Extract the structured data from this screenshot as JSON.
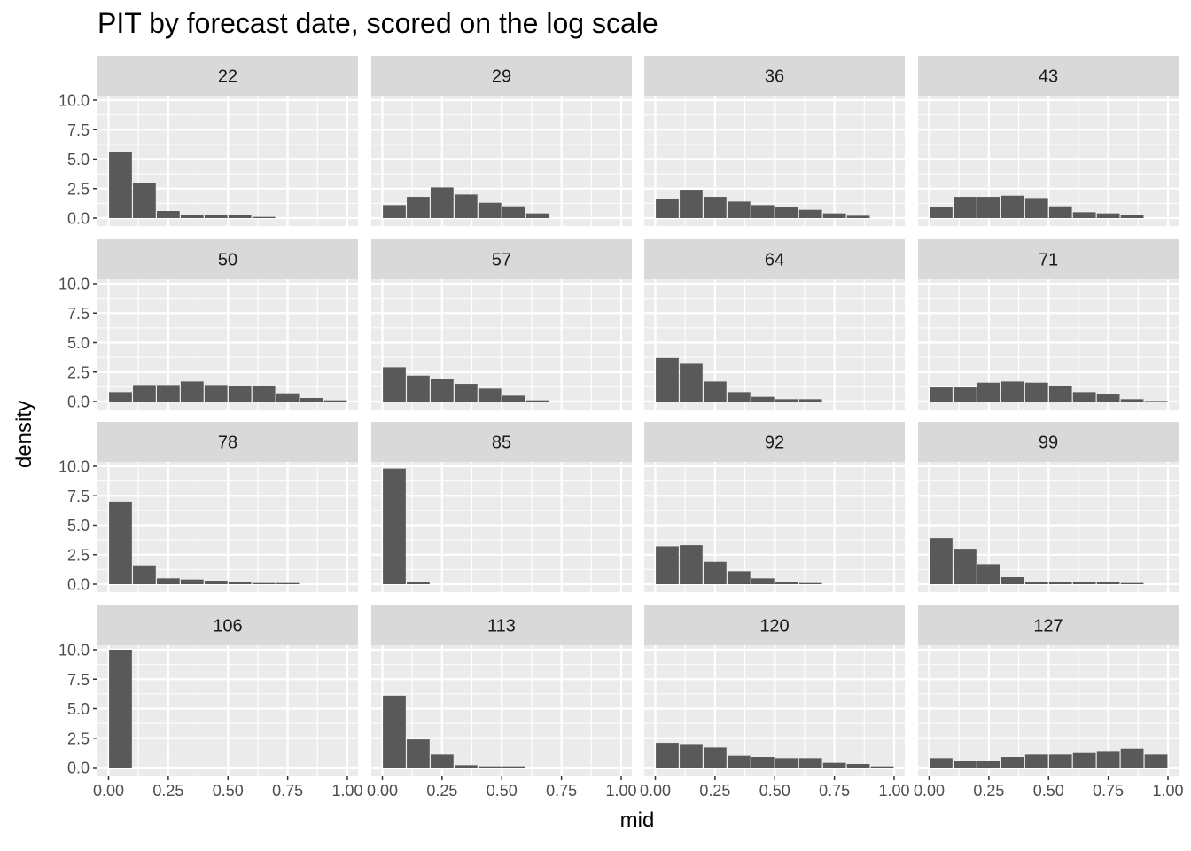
{
  "chart_data": {
    "type": "bar",
    "title": "PIT by forecast date, scored on the log scale",
    "xlabel": "mid",
    "ylabel": "density",
    "xlim": [
      0,
      1
    ],
    "ylim": [
      0,
      10
    ],
    "x_ticks": [
      "0.00",
      "0.25",
      "0.50",
      "0.75",
      "1.00"
    ],
    "y_ticks": [
      "0.0",
      "2.5",
      "5.0",
      "7.5",
      "10.0"
    ],
    "bin_mids": [
      0.05,
      0.15,
      0.25,
      0.35,
      0.45,
      0.55,
      0.65,
      0.75,
      0.85,
      0.95
    ],
    "grid": true,
    "facet_cols": 4,
    "panels": [
      {
        "label": "22",
        "values": [
          5.6,
          3.0,
          0.6,
          0.3,
          0.3,
          0.3,
          0.1,
          0,
          0,
          0
        ]
      },
      {
        "label": "29",
        "values": [
          1.1,
          1.8,
          2.6,
          2.0,
          1.3,
          1.0,
          0.4,
          0,
          0,
          0
        ]
      },
      {
        "label": "36",
        "values": [
          1.6,
          2.4,
          1.8,
          1.4,
          1.1,
          0.9,
          0.7,
          0.4,
          0.2,
          0
        ]
      },
      {
        "label": "43",
        "values": [
          0.9,
          1.8,
          1.8,
          1.9,
          1.7,
          1.0,
          0.5,
          0.4,
          0.3,
          0
        ]
      },
      {
        "label": "50",
        "values": [
          0.8,
          1.4,
          1.4,
          1.7,
          1.4,
          1.3,
          1.3,
          0.7,
          0.3,
          0.1
        ]
      },
      {
        "label": "57",
        "values": [
          2.9,
          2.2,
          1.9,
          1.5,
          1.1,
          0.5,
          0.1,
          0,
          0,
          0
        ]
      },
      {
        "label": "64",
        "values": [
          3.7,
          3.2,
          1.7,
          0.8,
          0.4,
          0.2,
          0.2,
          0,
          0,
          0
        ]
      },
      {
        "label": "71",
        "values": [
          1.2,
          1.2,
          1.6,
          1.7,
          1.6,
          1.3,
          0.8,
          0.6,
          0.2,
          0.05
        ]
      },
      {
        "label": "78",
        "values": [
          7.0,
          1.6,
          0.5,
          0.4,
          0.3,
          0.2,
          0.1,
          0.1,
          0,
          0
        ]
      },
      {
        "label": "85",
        "values": [
          9.8,
          0.2,
          0,
          0,
          0,
          0,
          0,
          0,
          0,
          0
        ]
      },
      {
        "label": "92",
        "values": [
          3.2,
          3.3,
          1.9,
          1.1,
          0.5,
          0.2,
          0.1,
          0,
          0,
          0
        ]
      },
      {
        "label": "99",
        "values": [
          3.9,
          3.0,
          1.7,
          0.6,
          0.2,
          0.2,
          0.2,
          0.2,
          0.1,
          0
        ]
      },
      {
        "label": "106",
        "values": [
          10.0,
          0,
          0,
          0,
          0,
          0,
          0,
          0,
          0,
          0
        ]
      },
      {
        "label": "113",
        "values": [
          6.1,
          2.4,
          1.1,
          0.2,
          0.1,
          0.1,
          0,
          0,
          0,
          0
        ]
      },
      {
        "label": "120",
        "values": [
          2.1,
          2.0,
          1.7,
          1.0,
          0.9,
          0.8,
          0.8,
          0.4,
          0.3,
          0.1
        ]
      },
      {
        "label": "127",
        "values": [
          0.8,
          0.6,
          0.6,
          0.9,
          1.1,
          1.1,
          1.3,
          1.4,
          1.6,
          1.1
        ]
      }
    ],
    "colors": {
      "bar": "#595959",
      "panel_bg": "#ebebeb",
      "strip_bg": "#d9d9d9",
      "grid": "#ffffff",
      "tick_text": "#4d4d4d",
      "strip_text": "#1a1a1a"
    }
  }
}
